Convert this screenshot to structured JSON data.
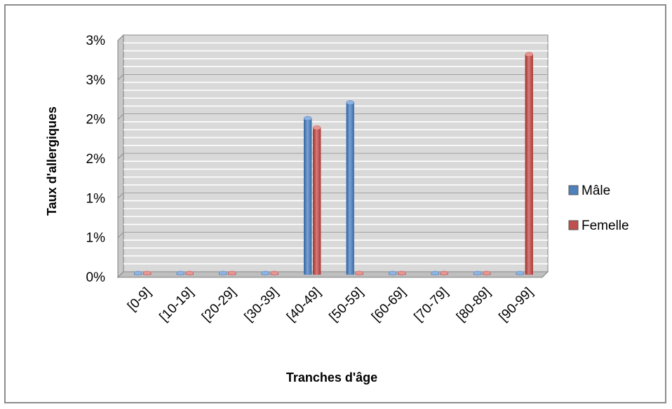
{
  "chart_data": {
    "type": "bar",
    "title": "",
    "xlabel": "Tranches d'âge",
    "ylabel": "Taux d'allergiques",
    "categories": [
      "[0-9]",
      "[10-19]",
      "[20-29]",
      "[30-39]",
      "[40-49]",
      "[50-59]",
      "[60-69]",
      "[70-79]",
      "[80-89]",
      "[90-99]"
    ],
    "series": [
      {
        "name": "Mâle",
        "color": "#4f81bd",
        "values": [
          0,
          0,
          0,
          0,
          0.0198,
          0.0218,
          0,
          0,
          0,
          0
        ]
      },
      {
        "name": "Femelle",
        "color": "#c0504d",
        "values": [
          0,
          0,
          0,
          0,
          0.0186,
          0,
          0,
          0,
          0,
          0.0279
        ]
      }
    ],
    "y_ticks": [
      0,
      0.005,
      0.01,
      0.015,
      0.02,
      0.025,
      0.03
    ],
    "y_tick_labels": [
      "0%",
      "1%",
      "1%",
      "2%",
      "2%",
      "3%",
      "3%"
    ],
    "ylim": [
      0,
      0.03
    ],
    "grid": true,
    "legend_position": "right",
    "three_d": true
  }
}
